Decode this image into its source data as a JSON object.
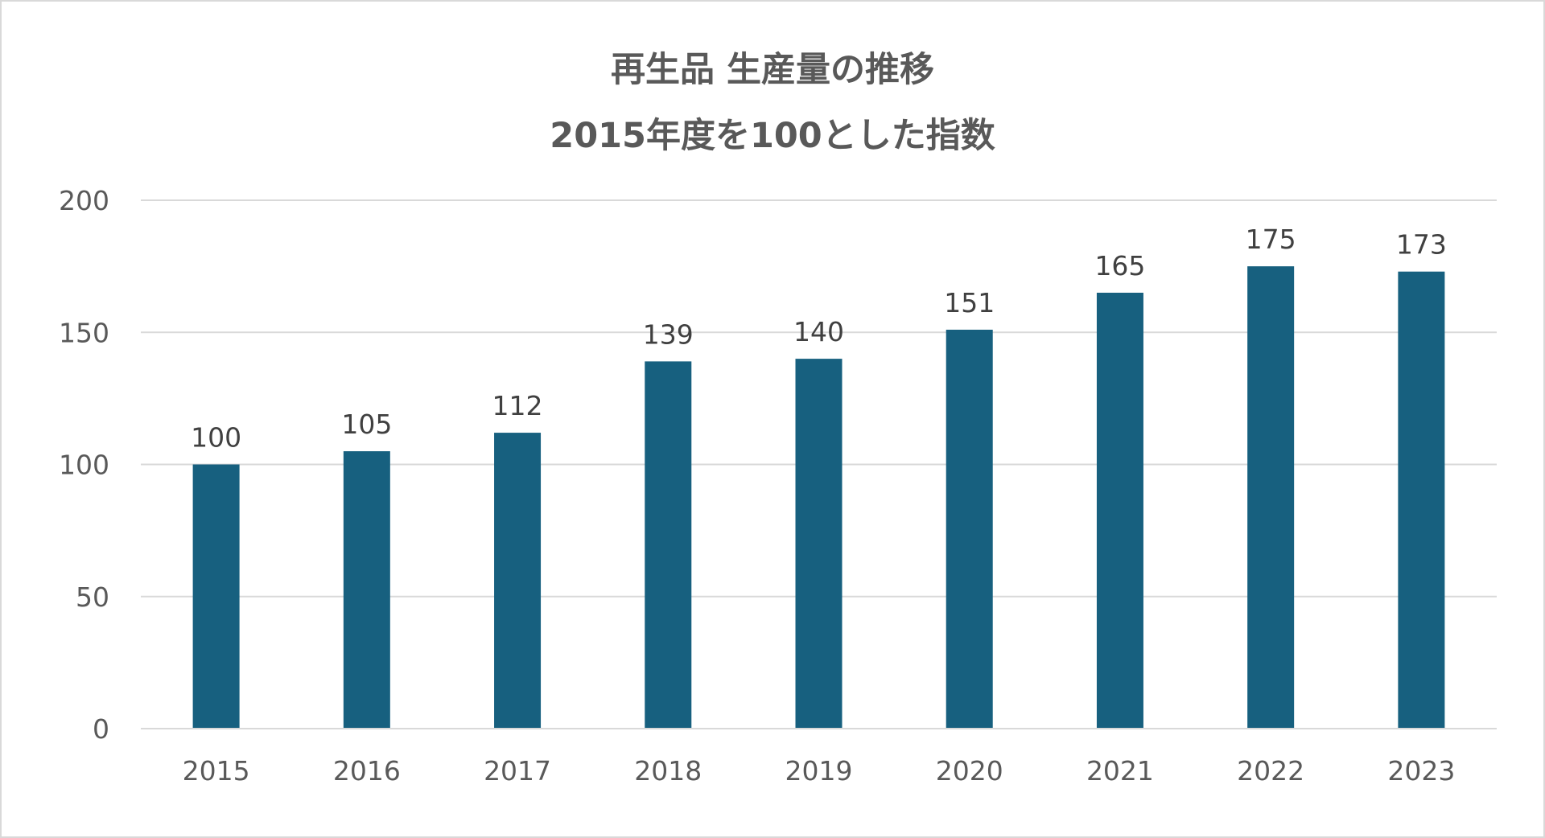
{
  "chart_data": {
    "type": "bar",
    "title": "再生品 生産量の推移",
    "subtitle": "2015年度を100とした指数",
    "xlabel": "",
    "ylabel": "",
    "categories": [
      "2015",
      "2016",
      "2017",
      "2018",
      "2019",
      "2020",
      "2021",
      "2022",
      "2023"
    ],
    "values": [
      100,
      105,
      112,
      139,
      140,
      151,
      165,
      175,
      173
    ],
    "ylim": [
      0,
      200
    ],
    "yticks": [
      0,
      50,
      100,
      150,
      200
    ],
    "grid": true,
    "legend": "none",
    "data_labels": true,
    "colors": {
      "bar": "#17607f",
      "grid": "#d9d9d9",
      "axis": "#d9d9d9"
    }
  }
}
